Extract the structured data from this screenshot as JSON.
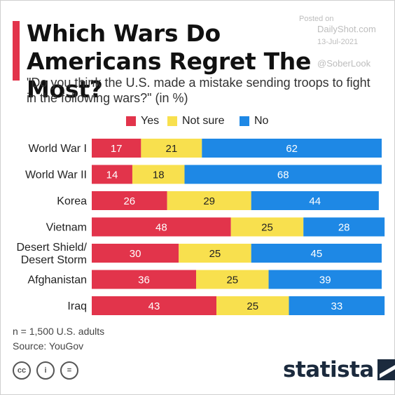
{
  "header": {
    "title": "Which Wars Do Americans Regret The Most?",
    "subtitle": "\"Do you think the U.S. made a mistake sending troops to fight in the following wars?\" (in %)"
  },
  "watermark": {
    "posted": "Posted on",
    "site": "DailyShot.com",
    "date": "13-Jul-2021",
    "handle": "@SoberLook"
  },
  "colors": {
    "accent": "#e2344b",
    "yes": "#e2344b",
    "not_sure": "#f8e04e",
    "no": "#1e88e5"
  },
  "chart_data": {
    "type": "bar",
    "orientation": "horizontal",
    "stacked": true,
    "categories": [
      "World War I",
      "World War II",
      "Korea",
      "Vietnam",
      "Desert Shield/\nDesert Storm",
      "Afghanistan",
      "Iraq"
    ],
    "series": [
      {
        "name": "Yes",
        "color": "#e2344b",
        "values": [
          17,
          14,
          26,
          48,
          30,
          36,
          43
        ]
      },
      {
        "name": "Not sure",
        "color": "#f8e04e",
        "values": [
          21,
          18,
          29,
          25,
          25,
          25,
          25
        ]
      },
      {
        "name": "No",
        "color": "#1e88e5",
        "values": [
          62,
          68,
          44,
          28,
          45,
          39,
          33
        ]
      }
    ],
    "legend_position": "top",
    "grid": false,
    "data_labels": true
  },
  "footer": {
    "sample": "n = 1,500 U.S. adults",
    "source": "Source: YouGov",
    "brand": "statista",
    "license_icons": [
      "cc-icon",
      "attribution-icon",
      "no-derivatives-icon"
    ],
    "license_glyphs": [
      "cc",
      "i",
      "="
    ]
  }
}
